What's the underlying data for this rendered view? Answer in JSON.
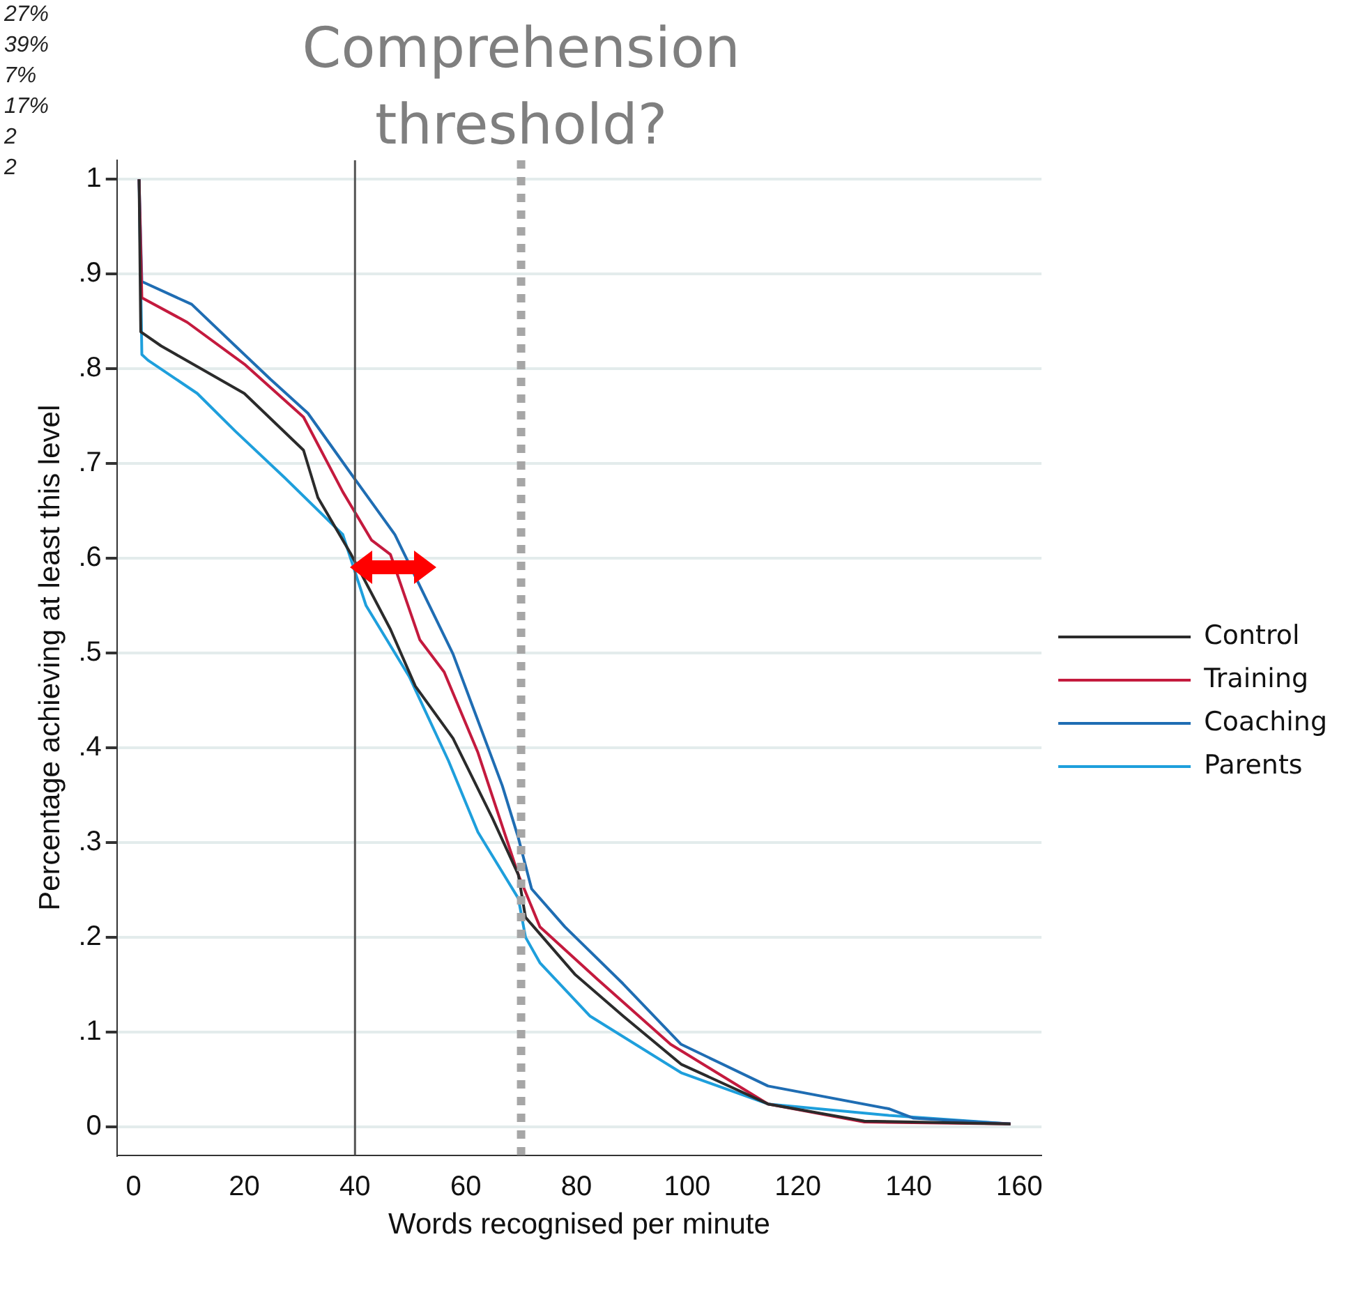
{
  "chart_data": {
    "type": "line",
    "xlabel": "Words recognised per minute",
    "ylabel": "Percentage achieving at least this level",
    "xlim": [
      -3,
      164
    ],
    "xticks": [
      0,
      20,
      40,
      60,
      80,
      100,
      120,
      140,
      160
    ],
    "ylim": [
      -0.03,
      1.02
    ],
    "yticks": [
      0,
      {
        "value": 0.1,
        "label": ".1"
      },
      {
        "value": 0.2,
        "label": ".2"
      },
      {
        "value": 0.3,
        "label": ".3"
      },
      {
        "value": 0.4,
        "label": ".4"
      },
      {
        "value": 0.5,
        "label": ".5"
      },
      {
        "value": 0.6,
        "label": ".6"
      },
      {
        "value": 0.7,
        "label": ".7"
      },
      {
        "value": 0.8,
        "label": ".8"
      },
      {
        "value": 0.9,
        "label": ".9"
      },
      1
    ],
    "grid": "y",
    "legend": "right",
    "marker": "none",
    "line_style": "solid",
    "ref_lines": [
      {
        "axis": "x",
        "value": 40,
        "color": "#555555",
        "line_style": "solid"
      },
      {
        "axis": "x",
        "value": 70,
        "label": "Comprehension threshold?",
        "color": "#a6a6a6",
        "line_style": "dotted"
      }
    ],
    "annotations": [
      "27%",
      "39%",
      "7%",
      "17%",
      "2",
      "2"
    ],
    "series": [
      {
        "name": "Control",
        "color": "#2b2b2b",
        "x": [
          1,
          1.3,
          5,
          20,
          30.7,
          33.3,
          39.3,
          46.4,
          50.9,
          57.7,
          64.8,
          69.5,
          70.8,
          79.7,
          88.4,
          98.9,
          114.6,
          132,
          158.4
        ],
        "values": [
          1,
          0.839,
          0.824,
          0.774,
          0.714,
          0.664,
          0.604,
          0.525,
          0.465,
          0.41,
          0.326,
          0.266,
          0.221,
          0.161,
          0.117,
          0.066,
          0.024,
          0.006,
          0.003
        ]
      },
      {
        "name": "Training",
        "color": "#c41a3e",
        "x": [
          1,
          1.5,
          9.7,
          20.2,
          30.7,
          37.8,
          43,
          46.4,
          51.7,
          56.1,
          62.2,
          69.5,
          73.4,
          83.9,
          97,
          114.6,
          132,
          158.4
        ],
        "values": [
          1,
          0.875,
          0.849,
          0.804,
          0.749,
          0.67,
          0.619,
          0.604,
          0.514,
          0.48,
          0.395,
          0.266,
          0.211,
          0.155,
          0.087,
          0.024,
          0.005,
          0.003
        ]
      },
      {
        "name": "Coaching",
        "color": "#1f6db3",
        "x": [
          1,
          1.5,
          10.5,
          18.4,
          24.7,
          31.5,
          39.3,
          47.2,
          57.7,
          66.6,
          69.5,
          71.9,
          77.9,
          88.4,
          98.9,
          114.6,
          136.4,
          140.9,
          158.4
        ],
        "values": [
          1,
          0.892,
          0.868,
          0.824,
          0.789,
          0.753,
          0.689,
          0.625,
          0.499,
          0.36,
          0.305,
          0.251,
          0.211,
          0.151,
          0.087,
          0.043,
          0.019,
          0.009,
          0.003
        ]
      },
      {
        "name": "Parents",
        "color": "#1e9fdc",
        "x": [
          1,
          1.5,
          2.6,
          11.5,
          18.4,
          27.3,
          37.8,
          42,
          49.8,
          56.9,
          62.2,
          69.5,
          70.8,
          73.4,
          82.4,
          98.9,
          114.6,
          136.4,
          158.4
        ],
        "values": [
          1,
          0.815,
          0.809,
          0.774,
          0.734,
          0.685,
          0.625,
          0.55,
          0.475,
          0.386,
          0.311,
          0.241,
          0.2,
          0.173,
          0.117,
          0.057,
          0.024,
          0.012,
          0.003
        ]
      }
    ]
  }
}
